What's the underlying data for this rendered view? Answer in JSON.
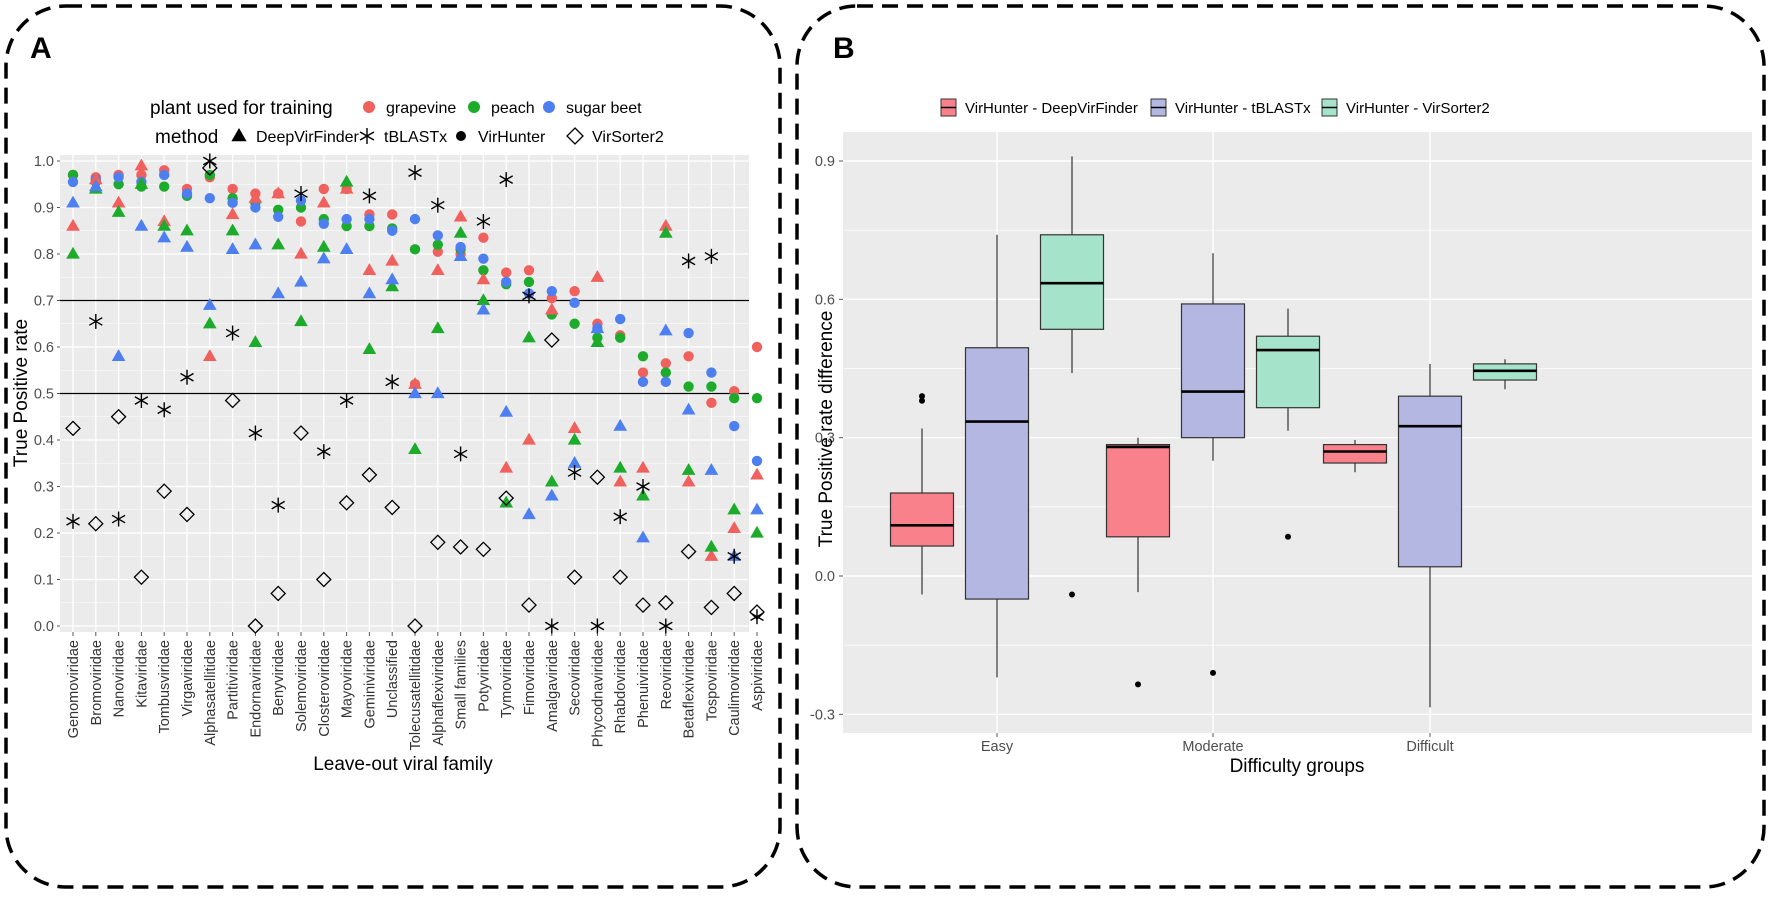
{
  "panels": {
    "a_label": "A",
    "b_label": "B"
  },
  "colors": {
    "grapevine": "#F0605D",
    "peach": "#1DAB2B",
    "sugar_beet": "#4D7FF0",
    "box_dvf": "#F8818C",
    "box_tbx": "#B3B7E1",
    "box_vs2": "#A6E3CB",
    "panel_bg": "#EBEBEB"
  },
  "chart_data": [
    {
      "type": "scatter",
      "title": "",
      "xlabel": "Leave-out viral family",
      "ylabel": "True Positive rate",
      "ylim": [
        0.0,
        1.02
      ],
      "yticks": [
        "0.0",
        "0.1",
        "0.2",
        "0.3",
        "0.4",
        "0.5",
        "0.6",
        "0.7",
        "0.8",
        "0.9",
        "1.0"
      ],
      "reference_lines": [
        0.5,
        0.7
      ],
      "legend": {
        "color_title": "plant used for training",
        "color_entries": [
          "grapevine",
          "peach",
          "sugar beet"
        ],
        "shape_title": "method",
        "shape_entries": [
          "DeepVirFinder",
          "tBLASTx",
          "VirHunter",
          "VirSorter2"
        ]
      },
      "categories": [
        "Genomoviridae",
        "Bromoviridae",
        "Nanoviridae",
        "Kitaviridae",
        "Tombusviridae",
        "Virgaviridae",
        "Alphasatellitidae",
        "Partitiviridae",
        "Endornaviridae",
        "Benyviridae",
        "Solemoviridae",
        "Closteroviridae",
        "Mayoviridae",
        "Geminiviridae",
        "Unclassified",
        "Tolecusatellitidae",
        "Alphaflexiviridae",
        "Small families",
        "Potyviridae",
        "Tymoviridae",
        "Fimoviridae",
        "Amalgaviridae",
        "Secoviridae",
        "Phycodnaviridae",
        "Rhabdoviridae",
        "Phenuiviridae",
        "Reoviridae",
        "Betaflexiviridae",
        "Tospoviridae",
        "Caulimoviridae",
        "Aspiviridae"
      ],
      "series": [
        {
          "method": "VirHunter",
          "plant": "grapevine",
          "values": [
            0.97,
            0.965,
            0.97,
            0.97,
            0.98,
            0.94,
            0.965,
            0.94,
            0.93,
            0.93,
            0.87,
            0.94,
            0.94,
            0.885,
            0.885,
            0.52,
            0.805,
            0.8,
            0.835,
            0.76,
            0.765,
            0.705,
            0.72,
            0.65,
            0.625,
            0.545,
            0.565,
            0.58,
            0.48,
            0.505,
            0.6
          ]
        },
        {
          "method": "VirHunter",
          "plant": "peach",
          "values": [
            0.97,
            0.955,
            0.95,
            0.945,
            0.945,
            0.925,
            0.97,
            0.92,
            0.91,
            0.895,
            0.9,
            0.875,
            0.86,
            0.86,
            0.855,
            0.81,
            0.82,
            0.81,
            0.765,
            0.735,
            0.74,
            0.67,
            0.65,
            0.62,
            0.62,
            0.58,
            0.545,
            0.515,
            0.515,
            0.49,
            0.49
          ]
        },
        {
          "method": "VirHunter",
          "plant": "sugar beet",
          "values": [
            0.955,
            0.96,
            0.965,
            0.955,
            0.97,
            0.93,
            0.92,
            0.91,
            0.9,
            0.88,
            0.915,
            0.865,
            0.875,
            0.875,
            0.85,
            0.875,
            0.84,
            0.815,
            0.79,
            0.74,
            0.715,
            0.72,
            0.695,
            0.64,
            0.66,
            0.525,
            0.525,
            0.63,
            0.545,
            0.43,
            0.355
          ]
        },
        {
          "method": "DeepVirFinder",
          "plant": "grapevine",
          "values": [
            0.86,
            0.96,
            0.91,
            0.99,
            0.87,
            null,
            0.58,
            0.885,
            0.92,
            0.93,
            0.8,
            0.91,
            0.94,
            0.765,
            0.785,
            0.52,
            0.765,
            0.88,
            0.745,
            0.34,
            0.4,
            0.68,
            0.425,
            0.75,
            0.31,
            0.34,
            0.86,
            0.31,
            0.15,
            0.21,
            0.325
          ]
        },
        {
          "method": "DeepVirFinder",
          "plant": "peach",
          "values": [
            0.8,
            0.94,
            0.89,
            0.95,
            0.86,
            0.85,
            0.65,
            0.85,
            0.61,
            0.82,
            0.655,
            0.815,
            0.955,
            0.595,
            0.73,
            0.38,
            0.64,
            0.845,
            0.7,
            0.265,
            0.62,
            0.31,
            0.4,
            0.61,
            0.34,
            0.28,
            0.845,
            0.335,
            0.17,
            0.25,
            0.2
          ]
        },
        {
          "method": "DeepVirFinder",
          "plant": "sugar beet",
          "values": [
            0.91,
            0.945,
            0.58,
            0.86,
            0.835,
            0.815,
            0.69,
            0.81,
            0.82,
            0.715,
            0.74,
            0.79,
            0.81,
            0.715,
            0.745,
            0.5,
            0.5,
            0.795,
            0.68,
            0.46,
            0.24,
            0.28,
            0.35,
            0.64,
            0.43,
            0.19,
            0.635,
            0.465,
            0.335,
            0.15,
            0.25
          ]
        },
        {
          "method": "tBLASTx",
          "values": [
            0.225,
            0.655,
            0.23,
            0.485,
            0.465,
            0.535,
            1.0,
            0.63,
            0.415,
            0.26,
            0.93,
            0.375,
            0.485,
            0.925,
            0.525,
            0.975,
            0.905,
            0.37,
            0.87,
            0.96,
            0.71,
            0.0,
            0.33,
            0.0,
            0.235,
            0.3,
            0.0,
            0.785,
            0.795,
            0.15,
            0.02
          ]
        },
        {
          "method": "VirSorter2",
          "values": [
            0.425,
            0.22,
            0.45,
            0.105,
            0.29,
            0.24,
            0.985,
            0.485,
            0.0,
            0.07,
            0.415,
            0.1,
            0.265,
            0.325,
            0.255,
            0.0,
            0.18,
            0.17,
            0.165,
            0.275,
            0.045,
            0.615,
            0.105,
            0.32,
            0.105,
            0.045,
            0.05,
            0.16,
            0.04,
            0.07,
            0.03
          ]
        }
      ]
    },
    {
      "type": "box",
      "title": "",
      "xlabel": "Difficulty groups",
      "ylabel": "True Positive rate difference",
      "ylim": [
        -0.34,
        1.0
      ],
      "yticks": [
        "-0.3",
        "0.0",
        "0.3",
        "0.6",
        "0.9"
      ],
      "categories": [
        "Easy",
        "Moderate",
        "Difficult"
      ],
      "legend": [
        "VirHunter - DeepVirFinder",
        "VirHunter - tBLASTx",
        "VirHunter - VirSorter2"
      ],
      "series": [
        {
          "name": "VirHunter - DeepVirFinder",
          "boxes": [
            {
              "group": "Easy",
              "min": -0.04,
              "q1": 0.065,
              "median": 0.11,
              "q3": 0.18,
              "max": 0.32,
              "outliers": [
                0.39,
                0.38
              ]
            },
            {
              "group": "Moderate",
              "min": -0.035,
              "q1": 0.085,
              "median": 0.28,
              "q3": 0.285,
              "max": 0.3,
              "outliers": [
                -0.235
              ]
            },
            {
              "group": "Difficult",
              "min": 0.225,
              "q1": 0.245,
              "median": 0.27,
              "q3": 0.285,
              "max": 0.295,
              "outliers": []
            }
          ]
        },
        {
          "name": "VirHunter - tBLASTx",
          "boxes": [
            {
              "group": "Easy",
              "min": -0.22,
              "q1": -0.05,
              "median": 0.335,
              "q3": 0.495,
              "max": 0.74,
              "outliers": []
            },
            {
              "group": "Moderate",
              "min": 0.25,
              "q1": 0.3,
              "median": 0.4,
              "q3": 0.59,
              "max": 0.7,
              "outliers": [
                -0.21
              ]
            },
            {
              "group": "Difficult",
              "min": -0.285,
              "q1": 0.02,
              "median": 0.325,
              "q3": 0.39,
              "max": 0.46,
              "outliers": []
            }
          ]
        },
        {
          "name": "VirHunter - VirSorter2",
          "boxes": [
            {
              "group": "Easy",
              "min": 0.44,
              "q1": 0.535,
              "median": 0.635,
              "q3": 0.74,
              "max": 0.91,
              "outliers": [
                -0.04
              ]
            },
            {
              "group": "Moderate",
              "min": 0.315,
              "q1": 0.365,
              "median": 0.49,
              "q3": 0.52,
              "max": 0.58,
              "outliers": [
                0.085
              ]
            },
            {
              "group": "Difficult",
              "min": 0.405,
              "q1": 0.425,
              "median": 0.445,
              "q3": 0.46,
              "max": 0.47,
              "outliers": []
            }
          ]
        }
      ]
    }
  ]
}
